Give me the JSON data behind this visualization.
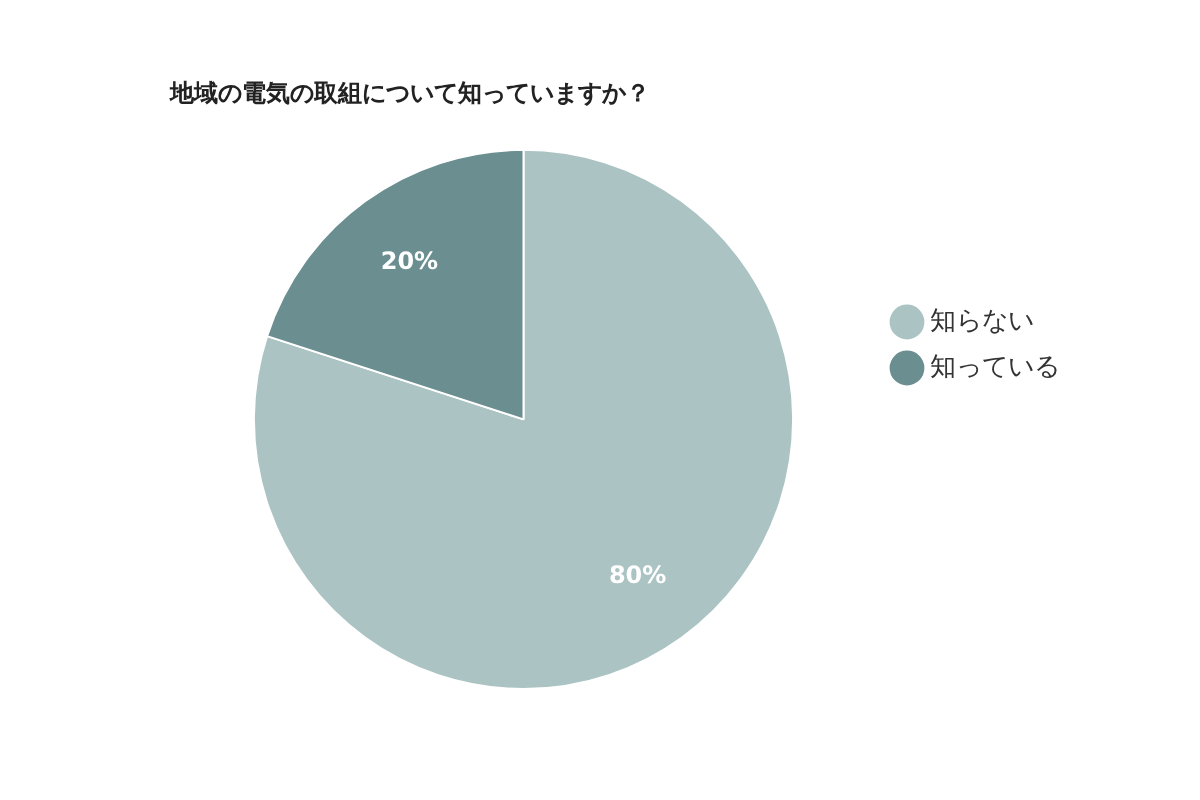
{
  "chart_data": {
    "type": "pie",
    "title": "地域の電気の取組について知っていますか？",
    "categories": [
      "知らない",
      "知っている"
    ],
    "values": [
      80,
      20
    ],
    "colors": [
      "#abc3c3",
      "#6b8e91"
    ],
    "value_labels": [
      "80%",
      "20%"
    ],
    "legend": "right"
  }
}
